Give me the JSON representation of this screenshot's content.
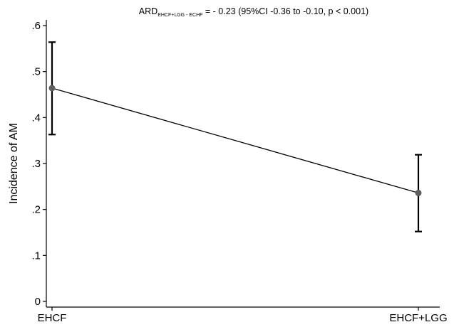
{
  "chart_data": {
    "type": "line",
    "title": {
      "prefix": "ARD",
      "subscript": "EHCF+LGG - ECHF",
      "suffix": " = - 0.23 (95%CI -0.36 to -0.10, p < 0.001)"
    },
    "xlabel": "",
    "ylabel": "Incidence of AM",
    "categories": [
      "EHCF",
      "EHCF+LGG"
    ],
    "yticks": [
      {
        "value": 0,
        "label": "0"
      },
      {
        "value": 0.1,
        "label": ".1"
      },
      {
        "value": 0.2,
        "label": ".2"
      },
      {
        "value": 0.3,
        "label": ".3"
      },
      {
        "value": 0.4,
        "label": ".4"
      },
      {
        "value": 0.5,
        "label": ".5"
      },
      {
        "value": 0.6,
        "label": ".6"
      }
    ],
    "ylim": [
      -0.01,
      0.625
    ],
    "series": [
      {
        "values": [
          0.464,
          0.236
        ],
        "ci_lower": [
          0.363,
          0.152
        ],
        "ci_upper": [
          0.564,
          0.319
        ]
      }
    ],
    "grid": false,
    "legend": "none",
    "colors": {
      "line": "#000000",
      "marker": "#5e5e5e",
      "errorbar": "#000000",
      "axis": "#000000"
    }
  }
}
